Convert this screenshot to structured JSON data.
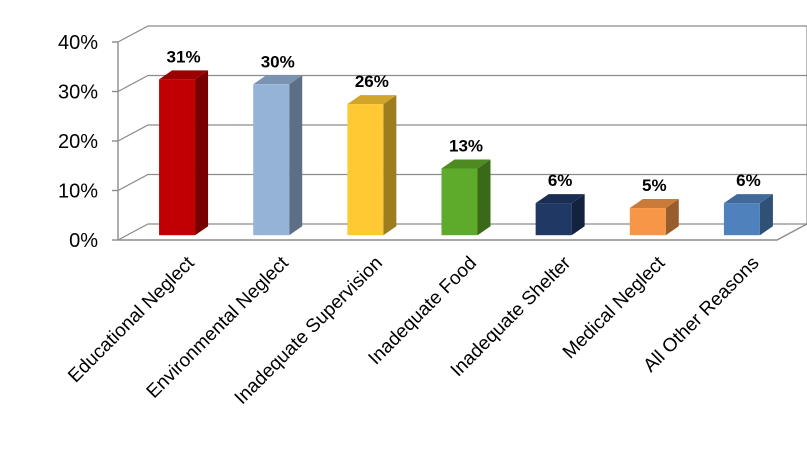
{
  "chart_data": {
    "type": "bar",
    "title": "",
    "xlabel": "",
    "ylabel": "",
    "categories": [
      "Educational Neglect",
      "Environmental Neglect",
      "Inadequate Supervision",
      "Inadequate Food",
      "Inadequate Shelter",
      "Medical Neglect",
      "All Other Reasons"
    ],
    "values": [
      31,
      30,
      26,
      13,
      6,
      5,
      6
    ],
    "value_labels": [
      "31%",
      "30%",
      "26%",
      "13%",
      "6%",
      "5%",
      "6%"
    ],
    "colors": [
      "#c00000",
      "#95b3d7",
      "#ffc933",
      "#5eaa2a",
      "#1f3864",
      "#f79646",
      "#4f81bd"
    ],
    "ylim": [
      0,
      40
    ],
    "yticks": [
      0,
      10,
      20,
      30,
      40
    ],
    "ytick_labels": [
      "0%",
      "10%",
      "20%",
      "30%",
      "40%"
    ],
    "grid": true,
    "legend": "none",
    "style": "3d-column"
  }
}
